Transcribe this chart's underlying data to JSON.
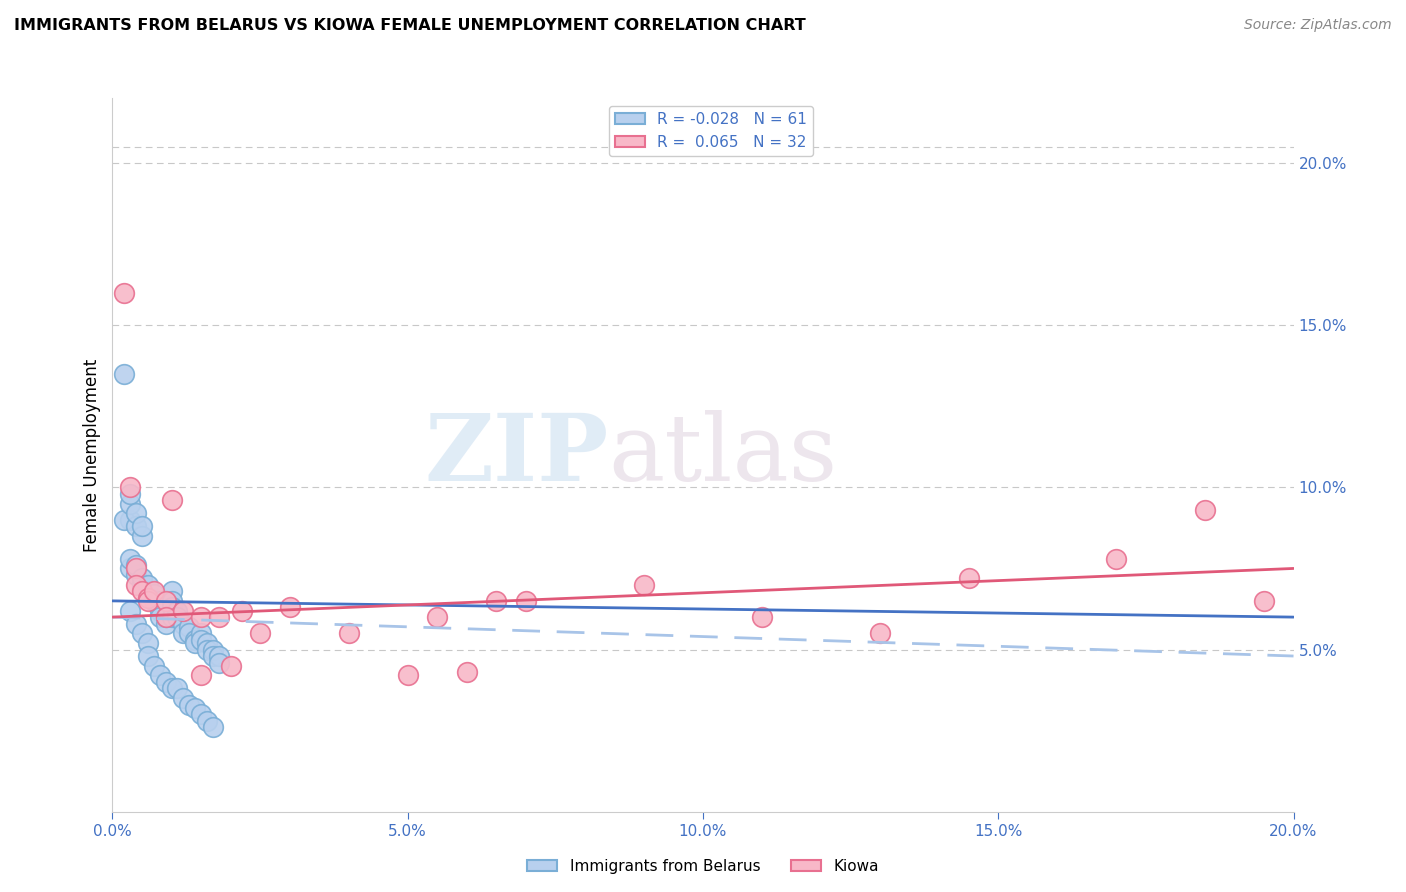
{
  "title": "IMMIGRANTS FROM BELARUS VS KIOWA FEMALE UNEMPLOYMENT CORRELATION CHART",
  "source": "Source: ZipAtlas.com",
  "ylabel": "Female Unemployment",
  "xlim": [
    0.0,
    0.2
  ],
  "ylim": [
    0.0,
    0.22
  ],
  "xticks": [
    0.0,
    0.05,
    0.1,
    0.15,
    0.2
  ],
  "yticks_right": [
    0.05,
    0.1,
    0.15,
    0.2
  ],
  "ytick_labels_right": [
    "5.0%",
    "10.0%",
    "15.0%",
    "20.0%"
  ],
  "xtick_labels": [
    "0.0%",
    "5.0%",
    "10.0%",
    "15.0%",
    "20.0%"
  ],
  "grid_color": "#c8c8c8",
  "watermark_zip": "ZIP",
  "watermark_atlas": "atlas",
  "series1_label": "Immigrants from Belarus",
  "series2_label": "Kiowa",
  "series1_face_color": "#b8d0ee",
  "series1_edge_color": "#7aaed6",
  "series2_face_color": "#f8b8c8",
  "series2_edge_color": "#e87090",
  "series1_line_color": "#4472c4",
  "series2_line_color": "#e05878",
  "series1_dash_color": "#a8c4e8",
  "legend_label1": "R = -0.028   N = 61",
  "legend_label2": "R =  0.065   N = 32",
  "series1_x": [
    0.002,
    0.003,
    0.002,
    0.003,
    0.003,
    0.004,
    0.004,
    0.005,
    0.005,
    0.003,
    0.003,
    0.004,
    0.004,
    0.005,
    0.005,
    0.006,
    0.006,
    0.007,
    0.007,
    0.008,
    0.008,
    0.008,
    0.008,
    0.009,
    0.009,
    0.01,
    0.01,
    0.01,
    0.01,
    0.011,
    0.011,
    0.012,
    0.012,
    0.013,
    0.013,
    0.014,
    0.014,
    0.015,
    0.015,
    0.016,
    0.016,
    0.017,
    0.017,
    0.018,
    0.018,
    0.003,
    0.004,
    0.005,
    0.006,
    0.006,
    0.007,
    0.008,
    0.009,
    0.01,
    0.011,
    0.012,
    0.013,
    0.014,
    0.015,
    0.016,
    0.017
  ],
  "series1_y": [
    0.135,
    0.09,
    0.09,
    0.095,
    0.098,
    0.088,
    0.092,
    0.085,
    0.088,
    0.075,
    0.078,
    0.073,
    0.076,
    0.07,
    0.072,
    0.068,
    0.07,
    0.065,
    0.067,
    0.065,
    0.063,
    0.062,
    0.06,
    0.058,
    0.06,
    0.068,
    0.065,
    0.063,
    0.06,
    0.062,
    0.06,
    0.058,
    0.055,
    0.057,
    0.055,
    0.053,
    0.052,
    0.055,
    0.053,
    0.052,
    0.05,
    0.05,
    0.048,
    0.048,
    0.046,
    0.062,
    0.058,
    0.055,
    0.052,
    0.048,
    0.045,
    0.042,
    0.04,
    0.038,
    0.038,
    0.035,
    0.033,
    0.032,
    0.03,
    0.028,
    0.026
  ],
  "series2_x": [
    0.002,
    0.003,
    0.004,
    0.004,
    0.005,
    0.006,
    0.006,
    0.007,
    0.009,
    0.009,
    0.01,
    0.012,
    0.015,
    0.015,
    0.018,
    0.02,
    0.022,
    0.025,
    0.03,
    0.04,
    0.05,
    0.055,
    0.06,
    0.065,
    0.07,
    0.09,
    0.11,
    0.13,
    0.145,
    0.17,
    0.185,
    0.195
  ],
  "series2_y": [
    0.16,
    0.1,
    0.075,
    0.07,
    0.068,
    0.066,
    0.065,
    0.068,
    0.065,
    0.06,
    0.096,
    0.062,
    0.06,
    0.042,
    0.06,
    0.045,
    0.062,
    0.055,
    0.063,
    0.055,
    0.042,
    0.06,
    0.043,
    0.065,
    0.065,
    0.07,
    0.06,
    0.055,
    0.072,
    0.078,
    0.093,
    0.065
  ],
  "trend1_x0": 0.0,
  "trend1_x1": 0.2,
  "trend1_y0": 0.065,
  "trend1_y1": 0.06,
  "trend1_dash_y0": 0.06,
  "trend1_dash_y1": 0.048,
  "trend2_x0": 0.0,
  "trend2_x1": 0.2,
  "trend2_y0": 0.06,
  "trend2_y1": 0.075
}
